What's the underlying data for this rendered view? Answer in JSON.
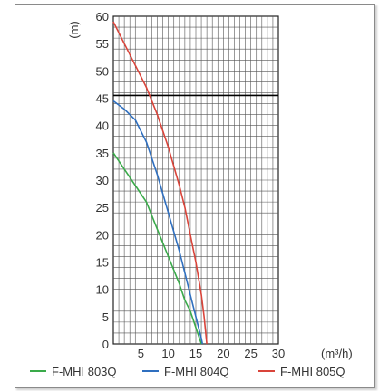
{
  "chart_data": {
    "type": "line",
    "title": "",
    "ylabel": "(m)",
    "xlabel": "(m³/h)",
    "xlim": [
      0,
      30
    ],
    "ylim": [
      0,
      60
    ],
    "x_ticks": [
      "5",
      "10",
      "15",
      "20",
      "25",
      "30"
    ],
    "y_ticks": [
      "0",
      "5",
      "10",
      "15",
      "20",
      "25",
      "30",
      "35",
      "40",
      "45",
      "50",
      "55",
      "60"
    ],
    "grid": true,
    "reference_line": {
      "y": 45.5,
      "color": "#000000"
    },
    "legend_position": "bottom",
    "series": [
      {
        "name": "F-MHI 803Q",
        "color": "#3aaa4a",
        "points": [
          [
            0,
            35
          ],
          [
            2,
            32
          ],
          [
            4,
            29
          ],
          [
            6,
            26
          ],
          [
            8,
            21
          ],
          [
            10,
            16
          ],
          [
            12,
            11
          ],
          [
            13,
            8
          ],
          [
            14,
            6
          ],
          [
            15,
            3
          ],
          [
            15.5,
            1.5
          ],
          [
            16,
            0
          ]
        ]
      },
      {
        "name": "F-MHI 804Q",
        "color": "#2f6fbf",
        "points": [
          [
            0,
            44.5
          ],
          [
            2,
            43
          ],
          [
            4,
            41
          ],
          [
            6,
            37
          ],
          [
            8,
            31
          ],
          [
            10,
            24
          ],
          [
            12,
            17
          ],
          [
            13,
            13
          ],
          [
            14,
            9
          ],
          [
            15,
            5
          ],
          [
            15.5,
            3
          ],
          [
            16,
            1
          ],
          [
            16.2,
            0
          ]
        ]
      },
      {
        "name": "F-MHI 805Q",
        "color": "#d9443a",
        "points": [
          [
            0,
            59
          ],
          [
            2,
            55
          ],
          [
            4,
            51
          ],
          [
            6,
            47
          ],
          [
            8,
            42
          ],
          [
            10,
            36
          ],
          [
            12,
            29
          ],
          [
            13,
            25
          ],
          [
            14,
            20
          ],
          [
            15,
            15
          ],
          [
            16,
            9
          ],
          [
            16.5,
            5
          ],
          [
            17,
            0
          ]
        ]
      }
    ]
  }
}
